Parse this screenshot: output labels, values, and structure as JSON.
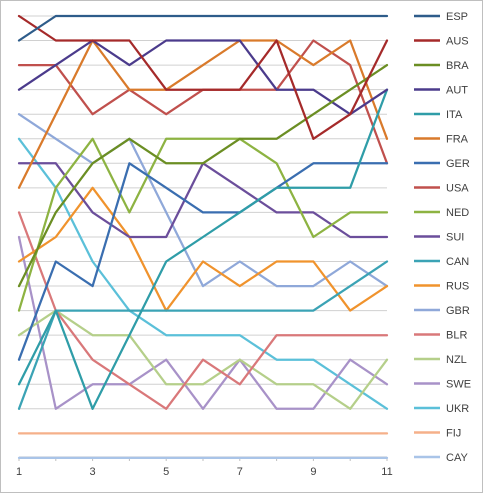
{
  "chart_data": {
    "type": "line",
    "title": "",
    "xlabel": "",
    "ylabel": "",
    "x": [
      1,
      2,
      3,
      4,
      5,
      6,
      7,
      8,
      9,
      10,
      11
    ],
    "x_ticks": [
      1,
      3,
      5,
      7,
      9,
      11
    ],
    "x_tick_labels": [
      "1",
      "3",
      "5",
      "7",
      "9",
      "11"
    ],
    "y_range": [
      1,
      18.8
    ],
    "y_inverted": true,
    "grid": "horizontal",
    "legend_position": "right",
    "series": [
      {
        "name": "ESP",
        "color": "#2E5C8A",
        "values": [
          2,
          1,
          1,
          1,
          1,
          1,
          1,
          1,
          1,
          1,
          1
        ]
      },
      {
        "name": "AUS",
        "color": "#A52A2A",
        "values": [
          1,
          2,
          2,
          2,
          4,
          4,
          4,
          2,
          6,
          5,
          2
        ]
      },
      {
        "name": "BRA",
        "color": "#6B8E23",
        "values": [
          12,
          9,
          7,
          6,
          7,
          7,
          6,
          6,
          5,
          4,
          3
        ]
      },
      {
        "name": "AUT",
        "color": "#4B3B8C",
        "values": [
          4,
          3,
          2,
          3,
          2,
          2,
          2,
          4,
          4,
          5,
          4
        ]
      },
      {
        "name": "ITA",
        "color": "#2F9DA8",
        "values": [
          16,
          13,
          17,
          14,
          11,
          10,
          9,
          8,
          8,
          8,
          4
        ]
      },
      {
        "name": "FRA",
        "color": "#D97A2B",
        "values": [
          8,
          5,
          2,
          4,
          4,
          3,
          2,
          2,
          3,
          2,
          6
        ]
      },
      {
        "name": "GER",
        "color": "#3A6EB0",
        "values": [
          15,
          11,
          12,
          7,
          8,
          9,
          9,
          8,
          7,
          7,
          7
        ]
      },
      {
        "name": "USA",
        "color": "#C0504D",
        "values": [
          3,
          3,
          5,
          4,
          5,
          4,
          4,
          4,
          2,
          3,
          7
        ]
      },
      {
        "name": "NED",
        "color": "#8DB342",
        "values": [
          13,
          8,
          6,
          9,
          6,
          6,
          6,
          7,
          10,
          9,
          9
        ]
      },
      {
        "name": "SUI",
        "color": "#6B4E9B",
        "values": [
          7,
          7,
          9,
          10,
          10,
          7,
          8,
          9,
          9,
          10,
          10
        ]
      },
      {
        "name": "CAN",
        "color": "#3BA3B5",
        "values": [
          17,
          13,
          13,
          13,
          13,
          13,
          13,
          13,
          13,
          12,
          11
        ]
      },
      {
        "name": "RUS",
        "color": "#F0932D",
        "values": [
          11,
          10,
          8,
          10,
          13,
          11,
          12,
          11,
          11,
          13,
          12
        ]
      },
      {
        "name": "GBR",
        "color": "#8FA8D9",
        "values": [
          5,
          6,
          7,
          6,
          9,
          12,
          11,
          12,
          12,
          11,
          12
        ]
      },
      {
        "name": "BLR",
        "color": "#D9787A",
        "values": [
          9,
          13,
          15,
          16,
          17,
          15,
          16,
          14,
          14,
          14,
          14
        ]
      },
      {
        "name": "NZL",
        "color": "#B5CF8A",
        "values": [
          14,
          13,
          14,
          14,
          16,
          16,
          15,
          16,
          16,
          17,
          15
        ]
      },
      {
        "name": "SWE",
        "color": "#A892C8",
        "values": [
          10,
          17,
          16,
          16,
          15,
          17,
          15,
          17,
          17,
          15,
          16
        ]
      },
      {
        "name": "UKR",
        "color": "#5BC0D9",
        "values": [
          6,
          8,
          11,
          13,
          14,
          14,
          14,
          15,
          15,
          16,
          17
        ]
      },
      {
        "name": "FIJ",
        "color": "#F5B08A",
        "values": [
          18,
          18,
          18,
          18,
          18,
          18,
          18,
          18,
          18,
          18,
          18
        ]
      },
      {
        "name": "CAY",
        "color": "#A9C4E8",
        "values": [
          19,
          19,
          19,
          19,
          19,
          19,
          19,
          19,
          19,
          19,
          19
        ]
      }
    ]
  }
}
